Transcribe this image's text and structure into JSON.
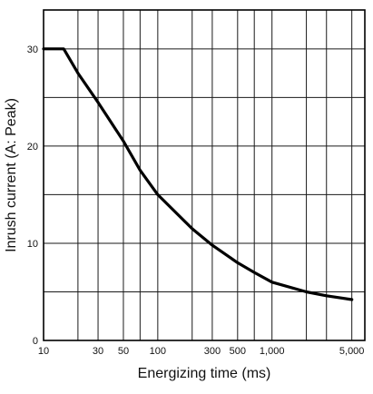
{
  "chart_data": {
    "type": "line",
    "title": "",
    "xlabel": "Energizing time (ms)",
    "ylabel": "Inrush current (A: Peak)",
    "x_scale": "log",
    "xlim": [
      10,
      6500
    ],
    "ylim": [
      0,
      34
    ],
    "grid": true,
    "x_tick_labels": [
      {
        "value": 10,
        "label": "10"
      },
      {
        "value": 30,
        "label": "30"
      },
      {
        "value": 50,
        "label": "50"
      },
      {
        "value": 100,
        "label": "100"
      },
      {
        "value": 300,
        "label": "300"
      },
      {
        "value": 500,
        "label": "500"
      },
      {
        "value": 1000,
        "label": "1,000"
      },
      {
        "value": 5000,
        "label": "5,000"
      }
    ],
    "y_tick_labels": [
      {
        "value": 0,
        "label": "0"
      },
      {
        "value": 10,
        "label": "10"
      },
      {
        "value": 20,
        "label": "20"
      },
      {
        "value": 30,
        "label": "30"
      }
    ],
    "x_gridlines": [
      20,
      30,
      50,
      70,
      100,
      200,
      300,
      500,
      700,
      1000,
      2000,
      3000,
      5000
    ],
    "y_gridlines": [
      5,
      10,
      15,
      20,
      25,
      30
    ],
    "series": [
      {
        "x": [
          10,
          15,
          20,
          30,
          50,
          70,
          100,
          200,
          300,
          500,
          700,
          1000,
          2000,
          3000,
          5000
        ],
        "y": [
          30,
          30,
          27.5,
          24.5,
          20.5,
          17.5,
          15,
          11.5,
          9.8,
          8,
          7,
          6,
          5,
          4.6,
          4.2
        ]
      }
    ]
  }
}
